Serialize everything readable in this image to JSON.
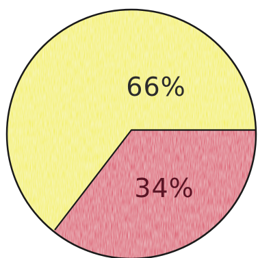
{
  "chart_data": {
    "type": "pie",
    "slices": [
      {
        "label": "66%",
        "value": 66,
        "color": "#f2ee3c"
      },
      {
        "label": "34%",
        "value": 34,
        "color": "#d81d4e"
      }
    ]
  }
}
